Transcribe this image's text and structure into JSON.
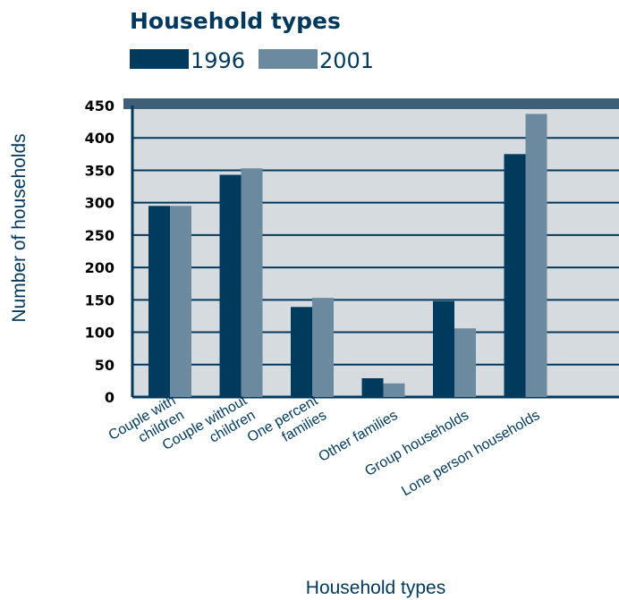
{
  "chart_data": {
    "type": "bar",
    "title": "Household types",
    "xlabel": "Household types",
    "ylabel": "Number of households",
    "categories": [
      [
        "Couple with",
        "children"
      ],
      [
        "Couple without",
        "children"
      ],
      [
        "One percent",
        "families"
      ],
      [
        "Other families"
      ],
      [
        "Group households"
      ],
      [
        "Lone person households"
      ]
    ],
    "series": [
      {
        "name": "1996",
        "color": "#003a5c",
        "values": [
          295,
          343,
          139,
          29,
          148,
          375
        ]
      },
      {
        "name": "2001",
        "color": "#6b8aa0",
        "values": [
          295,
          353,
          153,
          21,
          106,
          437
        ]
      }
    ],
    "ylim": [
      0,
      450
    ],
    "yticks": [
      0,
      50,
      100,
      150,
      200,
      250,
      300,
      350,
      400,
      450
    ],
    "grid": true,
    "legend_position": "top"
  }
}
